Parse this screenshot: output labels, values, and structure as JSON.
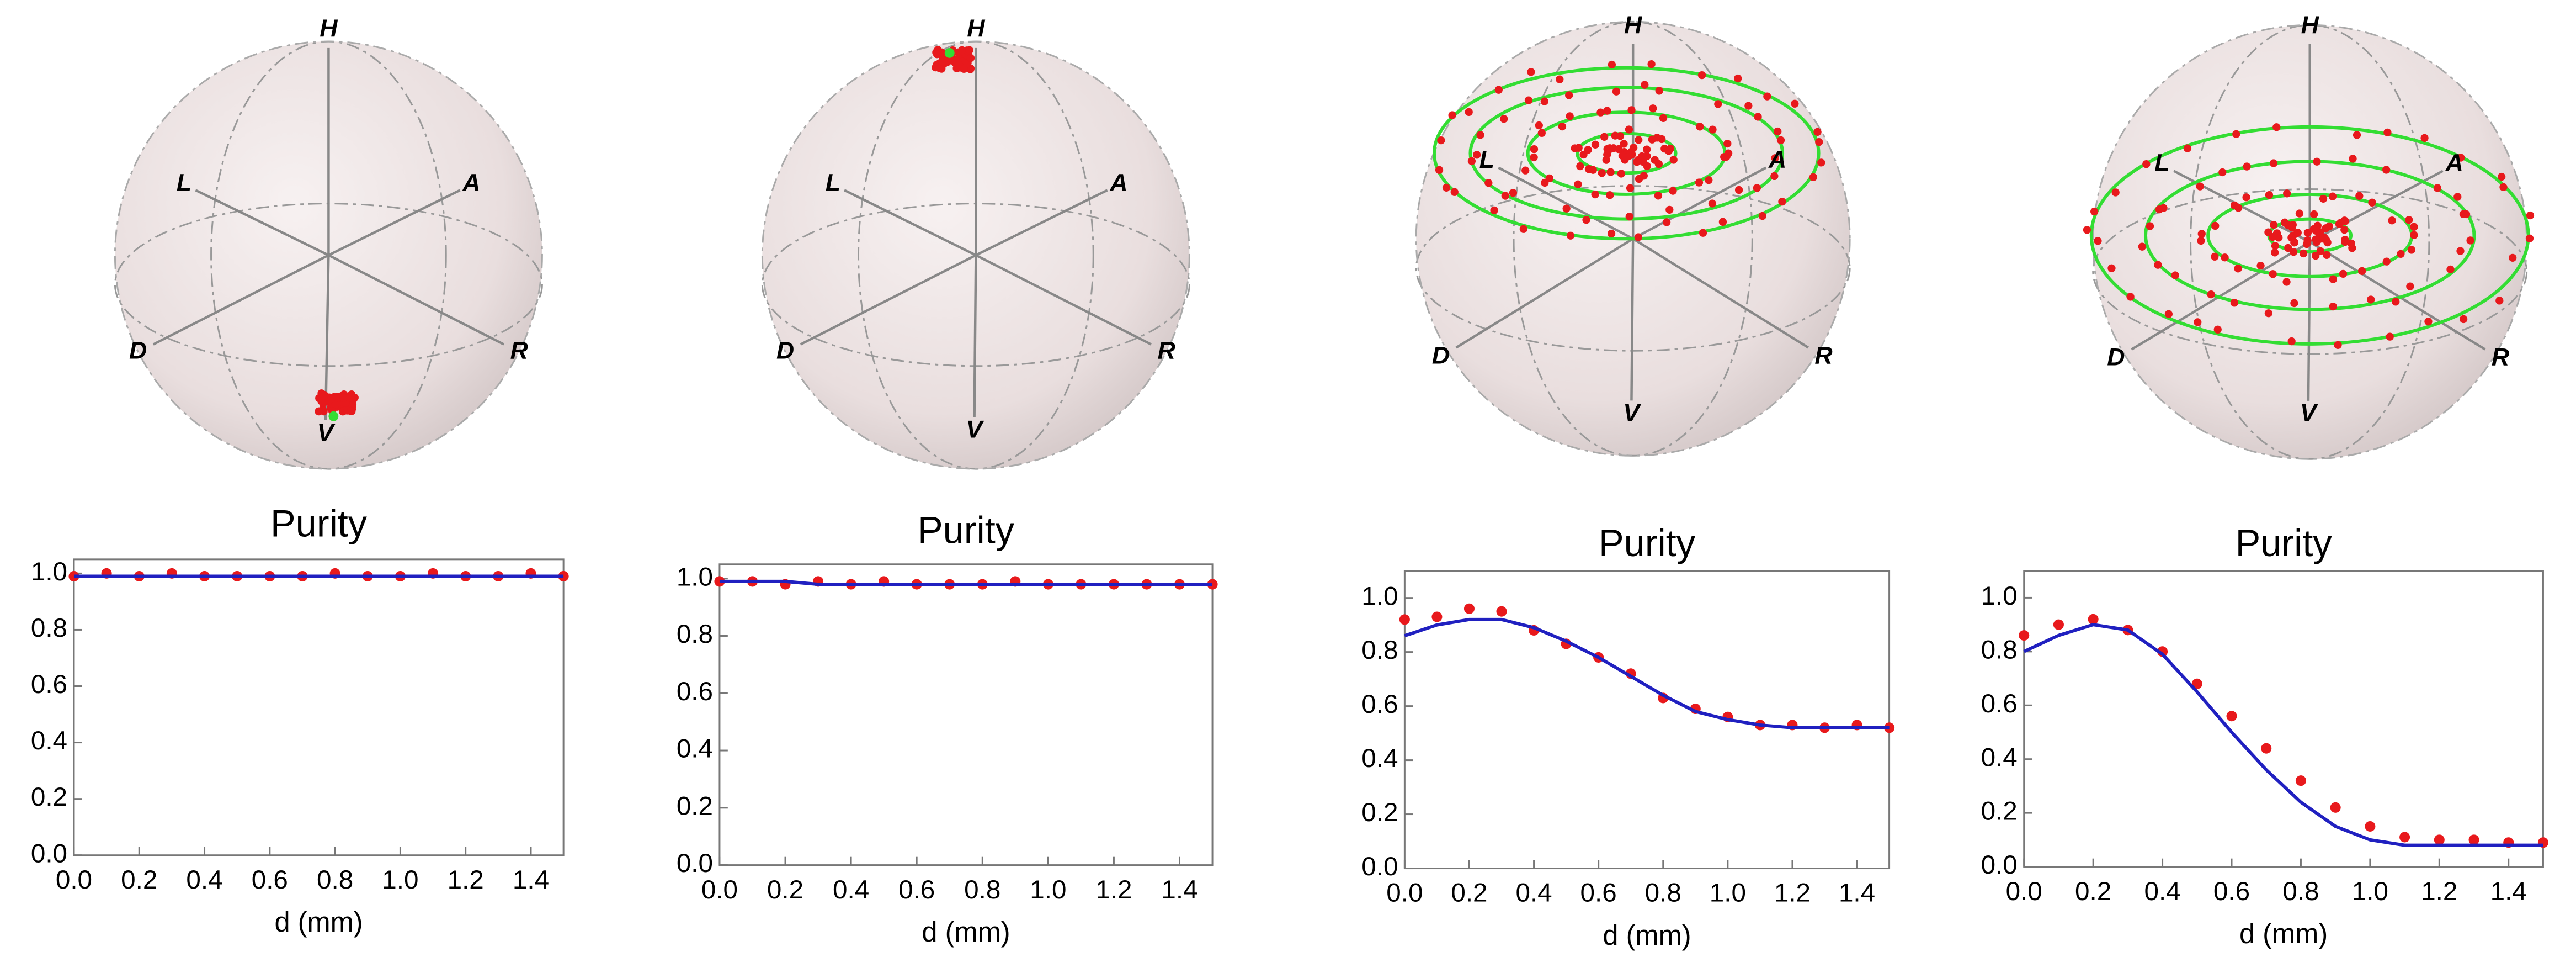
{
  "spheres": [
    {
      "labels": [
        "H",
        "L",
        "A",
        "D",
        "R",
        "V"
      ]
    },
    {
      "labels": [
        "H",
        "L",
        "A",
        "D",
        "R",
        "V"
      ]
    },
    {
      "labels": [
        "H",
        "L",
        "A",
        "D",
        "R",
        "V"
      ]
    },
    {
      "labels": [
        "H",
        "L",
        "A",
        "D",
        "R",
        "V"
      ]
    }
  ],
  "chart_data": [
    {
      "type": "scatter",
      "title": "Purity",
      "xlabel": "d (mm)",
      "x": [
        0,
        0.1,
        0.2,
        0.3,
        0.4,
        0.5,
        0.6,
        0.7,
        0.8,
        0.9,
        1.0,
        1.1,
        1.2,
        1.3,
        1.4,
        1.5
      ],
      "series": [
        {
          "color": "#e8191c",
          "style": "points",
          "values": [
            0.99,
            1.0,
            0.99,
            1.0,
            0.99,
            0.99,
            0.99,
            0.99,
            1.0,
            0.99,
            0.99,
            1.0,
            0.99,
            0.99,
            1.0,
            0.99
          ]
        },
        {
          "color": "#2020c0",
          "style": "line",
          "values": [
            0.99,
            0.99,
            0.99,
            0.99,
            0.99,
            0.99,
            0.99,
            0.99,
            0.99,
            0.99,
            0.99,
            0.99,
            0.99,
            0.99,
            0.99,
            0.99
          ]
        }
      ],
      "xlim": [
        0,
        1.5
      ],
      "ylim": [
        0,
        1.05
      ],
      "xticks": [
        {
          "value": 0,
          "label": "0.0"
        },
        {
          "value": 0.2,
          "label": "0.2"
        },
        {
          "value": 0.4,
          "label": "0.4"
        },
        {
          "value": 0.6,
          "label": "0.6"
        },
        {
          "value": 0.8,
          "label": "0.8"
        },
        {
          "value": 1,
          "label": "1.0"
        },
        {
          "value": 1.2,
          "label": "1.2"
        },
        {
          "value": 1.4,
          "label": "1.4"
        }
      ],
      "yticks": [
        {
          "value": 0,
          "label": "0.0"
        },
        {
          "value": 0.2,
          "label": "0.2"
        },
        {
          "value": 0.4,
          "label": "0.4"
        },
        {
          "value": 0.6,
          "label": "0.6"
        },
        {
          "value": 0.8,
          "label": "0.8"
        },
        {
          "value": 1,
          "label": "1.0"
        }
      ]
    },
    {
      "type": "scatter",
      "title": "Purity",
      "xlabel": "d (mm)",
      "x": [
        0,
        0.1,
        0.2,
        0.3,
        0.4,
        0.5,
        0.6,
        0.7,
        0.8,
        0.9,
        1.0,
        1.1,
        1.2,
        1.3,
        1.4,
        1.5
      ],
      "series": [
        {
          "color": "#e8191c",
          "style": "points",
          "values": [
            0.99,
            0.99,
            0.98,
            0.99,
            0.98,
            0.99,
            0.98,
            0.98,
            0.98,
            0.99,
            0.98,
            0.98,
            0.98,
            0.98,
            0.98,
            0.98
          ]
        },
        {
          "color": "#2020c0",
          "style": "line",
          "values": [
            0.99,
            0.99,
            0.99,
            0.98,
            0.98,
            0.98,
            0.98,
            0.98,
            0.98,
            0.98,
            0.98,
            0.98,
            0.98,
            0.98,
            0.98,
            0.98
          ]
        }
      ],
      "xlim": [
        0,
        1.5
      ],
      "ylim": [
        0,
        1.05
      ],
      "xticks": [
        {
          "value": 0,
          "label": "0.0"
        },
        {
          "value": 0.2,
          "label": "0.2"
        },
        {
          "value": 0.4,
          "label": "0.4"
        },
        {
          "value": 0.6,
          "label": "0.6"
        },
        {
          "value": 0.8,
          "label": "0.8"
        },
        {
          "value": 1,
          "label": "1.0"
        },
        {
          "value": 1.2,
          "label": "1.2"
        },
        {
          "value": 1.4,
          "label": "1.4"
        }
      ],
      "yticks": [
        {
          "value": 0,
          "label": "0.0"
        },
        {
          "value": 0.2,
          "label": "0.2"
        },
        {
          "value": 0.4,
          "label": "0.4"
        },
        {
          "value": 0.6,
          "label": "0.6"
        },
        {
          "value": 0.8,
          "label": "0.8"
        },
        {
          "value": 1,
          "label": "1.0"
        }
      ]
    },
    {
      "type": "scatter",
      "title": "Purity",
      "xlabel": "d (mm)",
      "x": [
        0,
        0.1,
        0.2,
        0.3,
        0.4,
        0.5,
        0.6,
        0.7,
        0.8,
        0.9,
        1.0,
        1.1,
        1.2,
        1.3,
        1.4,
        1.5
      ],
      "series": [
        {
          "color": "#e8191c",
          "style": "points",
          "values": [
            0.92,
            0.93,
            0.96,
            0.95,
            0.88,
            0.83,
            0.78,
            0.72,
            0.63,
            0.59,
            0.56,
            0.53,
            0.53,
            0.52,
            0.53,
            0.52
          ]
        },
        {
          "color": "#2020c0",
          "style": "line",
          "values": [
            0.86,
            0.9,
            0.92,
            0.92,
            0.89,
            0.84,
            0.78,
            0.71,
            0.64,
            0.58,
            0.55,
            0.53,
            0.52,
            0.52,
            0.52,
            0.52
          ]
        }
      ],
      "xlim": [
        0,
        1.5
      ],
      "ylim": [
        0,
        1.1
      ],
      "xticks": [
        {
          "value": 0,
          "label": "0.0"
        },
        {
          "value": 0.2,
          "label": "0.2"
        },
        {
          "value": 0.4,
          "label": "0.4"
        },
        {
          "value": 0.6,
          "label": "0.6"
        },
        {
          "value": 0.8,
          "label": "0.8"
        },
        {
          "value": 1,
          "label": "1.0"
        },
        {
          "value": 1.2,
          "label": "1.2"
        },
        {
          "value": 1.4,
          "label": "1.4"
        }
      ],
      "yticks": [
        {
          "value": 0,
          "label": "0.0"
        },
        {
          "value": 0.2,
          "label": "0.2"
        },
        {
          "value": 0.4,
          "label": "0.4"
        },
        {
          "value": 0.6,
          "label": "0.6"
        },
        {
          "value": 0.8,
          "label": "0.8"
        },
        {
          "value": 1,
          "label": "1.0"
        }
      ]
    },
    {
      "type": "scatter",
      "title": "Purity",
      "xlabel": "d (mm)",
      "x": [
        0,
        0.1,
        0.2,
        0.3,
        0.4,
        0.5,
        0.6,
        0.7,
        0.8,
        0.9,
        1.0,
        1.1,
        1.2,
        1.3,
        1.4,
        1.5
      ],
      "series": [
        {
          "color": "#e8191c",
          "style": "points",
          "values": [
            0.86,
            0.9,
            0.92,
            0.88,
            0.8,
            0.68,
            0.56,
            0.44,
            0.32,
            0.22,
            0.15,
            0.11,
            0.1,
            0.1,
            0.09,
            0.09
          ]
        },
        {
          "color": "#2020c0",
          "style": "line",
          "values": [
            0.8,
            0.86,
            0.9,
            0.88,
            0.79,
            0.65,
            0.5,
            0.36,
            0.24,
            0.15,
            0.1,
            0.08,
            0.08,
            0.08,
            0.08,
            0.08
          ]
        }
      ],
      "xlim": [
        0,
        1.5
      ],
      "ylim": [
        0,
        1.1
      ],
      "xticks": [
        {
          "value": 0,
          "label": "0.0"
        },
        {
          "value": 0.2,
          "label": "0.2"
        },
        {
          "value": 0.4,
          "label": "0.4"
        },
        {
          "value": 0.6,
          "label": "0.6"
        },
        {
          "value": 0.8,
          "label": "0.8"
        },
        {
          "value": 1,
          "label": "1.0"
        },
        {
          "value": 1.2,
          "label": "1.2"
        },
        {
          "value": 1.4,
          "label": "1.4"
        }
      ],
      "yticks": [
        {
          "value": 0,
          "label": "0.0"
        },
        {
          "value": 0.2,
          "label": "0.2"
        },
        {
          "value": 0.4,
          "label": "0.4"
        },
        {
          "value": 0.6,
          "label": "0.6"
        },
        {
          "value": 0.8,
          "label": "0.8"
        },
        {
          "value": 1,
          "label": "1.0"
        }
      ]
    }
  ]
}
